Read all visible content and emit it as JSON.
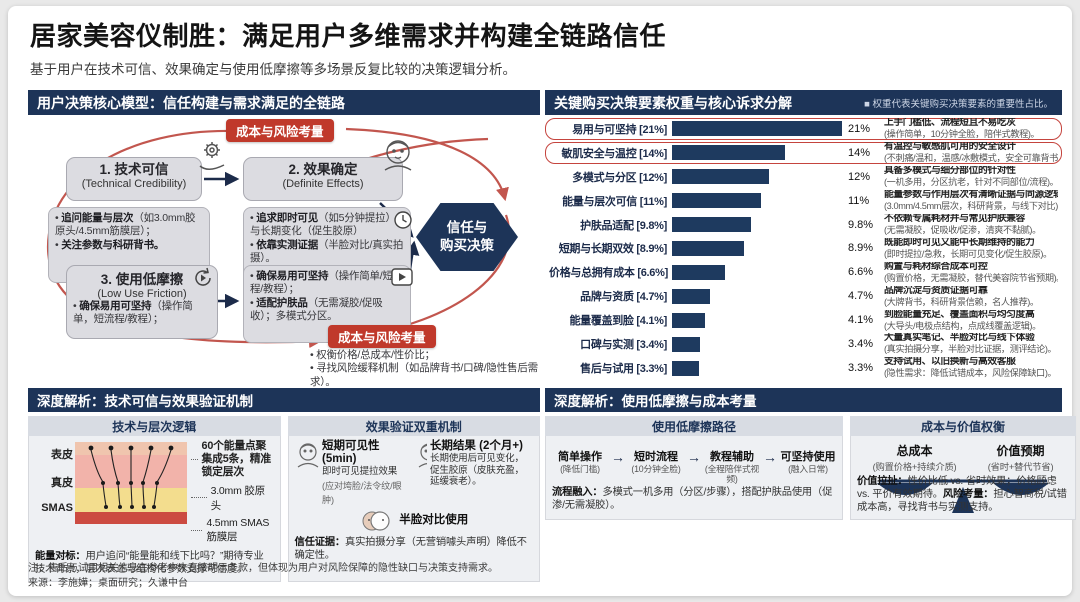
{
  "header": {
    "title": "居家美容仪制胜：满足用户多维需求并构建全链路信任",
    "subtitle": "基于用户在技术可信、效果确定与使用低摩擦等多场景反复比较的决策逻辑分析。"
  },
  "model": {
    "panel_title": "用户决策核心模型：信任构建与需求满足的全链路",
    "top_badge": "成本与风险考量",
    "bottom_badge": "成本与风险考量",
    "box1_title": "1. 技术可信",
    "box1_en": "(Technical Credibility)",
    "box2_title": "2. 效果确定",
    "box2_en": "(Definite Effects)",
    "box3_title": "3. 使用低摩擦",
    "box3_en": "(Low Use Friction)",
    "hex_line1": "信任与",
    "hex_line2": "购买决策",
    "box3_items": [
      {
        "b": "确保易用可坚持",
        "t": "（操作简单，短流程/教程）；"
      }
    ],
    "detail1_items": [
      {
        "b": "追问能量与层次",
        "t": "（如3.0mm胶原头/4.5mm筋膜层）；"
      },
      {
        "b": "关注参数与科研背书。",
        "t": ""
      }
    ],
    "detail2_items": [
      {
        "b": "追求即时可见",
        "t": "（如5分钟提拉）与长期变化（促生胶原）"
      },
      {
        "b": "依靠实测证据",
        "t": "（半脸对比/真实拍摄）。"
      }
    ],
    "detail3_items": [
      {
        "b": "确保易用可坚持",
        "t": "（操作简单/短流程/教程）；"
      },
      {
        "b": "适配护肤品",
        "t": "（无需凝胶/促吸收）；多模式分区。"
      }
    ],
    "bottom_items": [
      {
        "b": "",
        "t": "权衡价格/总成本/性价比；"
      },
      {
        "b": "",
        "t": "寻找风险缓释机制（如品牌背书/口碑/隐性售后需求）。"
      }
    ]
  },
  "chart_data": {
    "type": "bar",
    "orientation": "horizontal",
    "title": "关键购买决策要素权重与核心诉求分解",
    "legend_note": "■ 权重代表关键购买决策要素的重要性占比。",
    "unit": "%",
    "max_value": 21,
    "xlim": [
      0,
      21
    ],
    "rows": [
      {
        "label": "易用与可坚持",
        "weight": "21%",
        "value": 21,
        "desc": "上手门槛低、流程短且不易吃灰",
        "sub": "(操作简单，10分钟全脸，陪伴式教程)。",
        "highlight": true
      },
      {
        "label": "敏肌安全与温控",
        "weight": "14%",
        "value": 14,
        "desc": "有温控与敏感肌可用的安全设计",
        "sub": "(不刺痛/温和，温感/冰敷模式，安全可靠背书)。",
        "highlight": true
      },
      {
        "label": "多模式与分区",
        "weight": "12%",
        "value": 12,
        "desc": "具备多模式与细分部位的针对性",
        "sub": "(一机多用，分区抗老，针对不同部位/流程)。",
        "highlight": false
      },
      {
        "label": "能量与层次可信",
        "weight": "11%",
        "value": 11,
        "desc": "能量参数与作用层次有清晰证据与同源逻辑",
        "sub": "(3.0mm/4.5mm层次，科研背景，与线下对比)。",
        "highlight": false
      },
      {
        "label": "护肤品适配",
        "weight": "9.8%",
        "value": 9.8,
        "desc": "不依赖专属耗材并与常见护肤兼容",
        "sub": "(无需凝胶，促吸收/促渗，清爽不黏腻)。",
        "highlight": false
      },
      {
        "label": "短期与长期双效",
        "weight": "8.9%",
        "value": 8.9,
        "desc": "既能即时可见又能中长期维持的能力",
        "sub": "(即时提拉/急救，长期可见变化/促生胶原)。",
        "highlight": false
      },
      {
        "label": "价格与总拥有成本",
        "weight": "6.6%",
        "value": 6.6,
        "desc": "购置与耗材综合成本可控",
        "sub": "(购置价格，无需凝胶，替代美容院节省预期)。",
        "highlight": false
      },
      {
        "label": "品牌与资质",
        "weight": "4.7%",
        "value": 4.7,
        "desc": "品牌沉淀与资质证据可靠",
        "sub": "(大牌背书，科研背景信赖，名人推荐)。",
        "highlight": false
      },
      {
        "label": "能量覆盖到脸",
        "weight": "4.1%",
        "value": 4.1,
        "desc": "到脸能量充足、覆盖面积与均匀度高",
        "sub": "(大导头/电极点结构，点成线覆盖逻辑)。",
        "highlight": false
      },
      {
        "label": "口碑与实测",
        "weight": "3.4%",
        "value": 3.4,
        "desc": "大量真实笔记、半脸对比与线下体验",
        "sub": "(真实拍摄分享，半脸对比证据，测评结论)。",
        "highlight": false
      },
      {
        "label": "售后与试用",
        "weight": "3.3%",
        "value": 3.3,
        "desc": "支持试用、以旧换新与高效客服",
        "sub": "(隐性需求：降低试错成本，风险保障缺口)。",
        "highlight": false
      }
    ]
  },
  "tech": {
    "panel_title": "深度解析：技术可信与效果验证机制",
    "col1_title": "技术与层次逻辑",
    "col2_title": "效果验证双重机制",
    "layers": {
      "l1": "表皮",
      "l2": "真皮",
      "l3": "SMAS"
    },
    "ann1": "60个能量点聚集成5条，精准锁定层次",
    "ann2": "3.0mm 胶原头",
    "ann3": "4.5mm SMAS筋膜层",
    "note_b": "能量对标：",
    "note_t": "用户追问“能量能和线下比吗？”期待专业技术背景，层次表述与结构化参数支撑可信度。",
    "short_title": "短期可见性 (5min)",
    "short_l1": "即时可见提拉效果",
    "short_l2": "(应对垮脸/法令纹/眼肿)",
    "long_title": "长期结果 (2个月+)",
    "long_l1": "长期使用后可见变化，促生胶原（皮肤充盈，延缓衰老）。",
    "half_face": "半脸对比使用",
    "trust_b": "信任证据：",
    "trust_t": "真实拍摄分享（无营销噱头声明）降低不确定性。"
  },
  "friction": {
    "panel_title": "深度解析：使用低摩擦与成本考量",
    "col1_title": "使用低摩擦路径",
    "col2_title": "成本与价值权衡",
    "steps": [
      {
        "t": "简单操作",
        "s": "(降低门槛)"
      },
      {
        "t": "短时流程",
        "s": "(10分钟全脸)"
      },
      {
        "t": "教程辅助",
        "s": "(全程陪伴式视频)"
      },
      {
        "t": "可坚持使用",
        "s": "(融入日常)"
      }
    ],
    "arrow": "→",
    "flow_note": [
      {
        "b": "流程融入：",
        "t": "多模式一机多用（分区/步骤），搭配护肤品使用（促渗/无需凝胶）。"
      }
    ],
    "cost_t": "总成本",
    "cost_s": "(购置价格+持续介质)",
    "value_t": "价值预期",
    "value_s": "(省时+替代节省)",
    "balance_note": [
      {
        "b": "价值拉扯：",
        "t": "性价比低 vs. 省时效果；价格顾虑 vs. 平价有效期待。"
      },
      {
        "b": "风险考量：",
        "t": "担心智商税/试错成本高，寻找背书与实测支持。"
      }
    ]
  },
  "footer": {
    "note": "注：售后与试用相关信息在参考中未直接明示条款，但体现为用户对风险保障的隐性缺口与决策支持需求。",
    "source": "来源：李施嬅；桌面研究；久谦中台"
  },
  "colors": {
    "navy": "#1d3458",
    "bar": "#1e3a5f",
    "red": "#c0392b"
  }
}
